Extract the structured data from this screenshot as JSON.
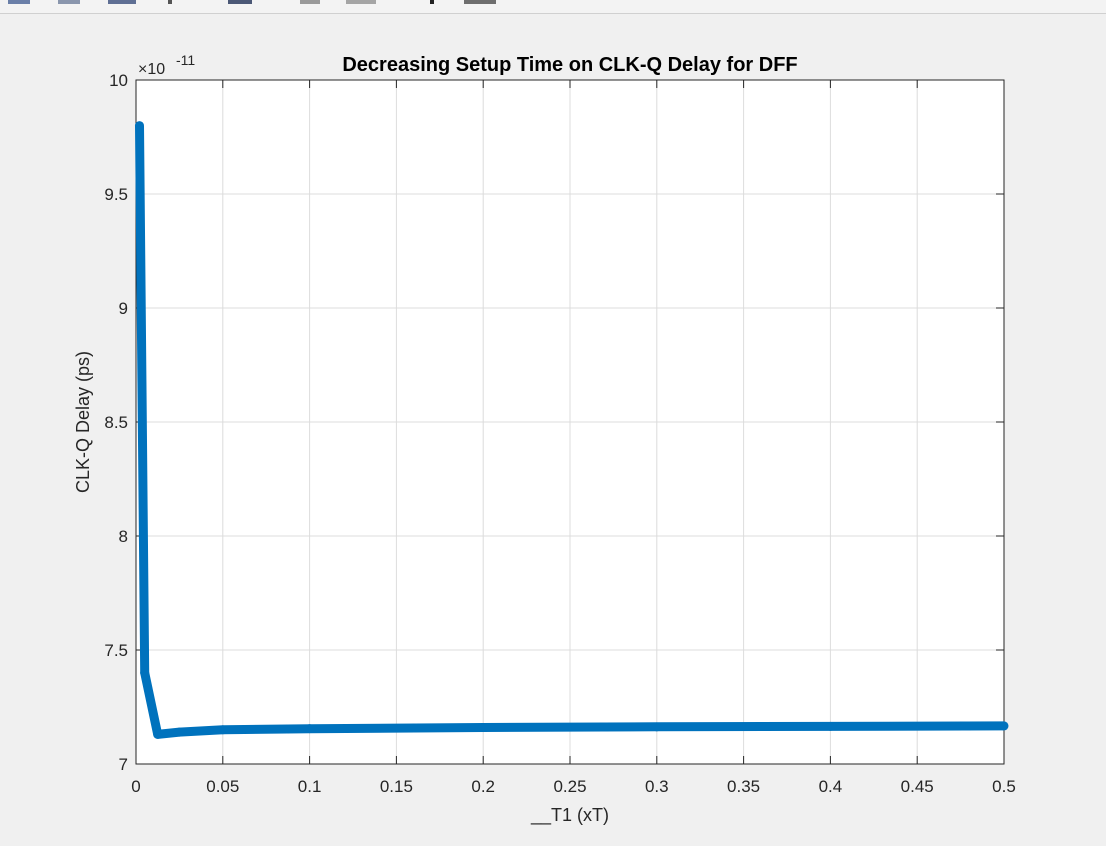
{
  "chart_data": {
    "type": "line",
    "title": "Decreasing Setup Time on CLK-Q Delay for DFF",
    "xlabel": "__T1 (xT)",
    "ylabel": "CLK-Q Delay (ps)",
    "y_exponent_base": "×10",
    "y_exponent_power": "-11",
    "xlim": [
      0,
      0.5
    ],
    "ylim": [
      7e-11,
      1e-10
    ],
    "grid": true,
    "xticks": [
      0,
      0.05,
      0.1,
      0.15,
      0.2,
      0.25,
      0.3,
      0.35,
      0.4,
      0.45,
      0.5
    ],
    "xtick_labels": [
      "0",
      "0.05",
      "0.1",
      "0.15",
      "0.2",
      "0.25",
      "0.3",
      "0.35",
      "0.4",
      "0.45",
      "0.5"
    ],
    "yticks": [
      7e-11,
      7.5e-11,
      8e-11,
      8.5e-11,
      9e-11,
      9.5e-11,
      1e-10
    ],
    "ytick_labels": [
      "7",
      "7.5",
      "8",
      "8.5",
      "9",
      "9.5",
      "10"
    ],
    "series": [
      {
        "color": "#0072bd",
        "x": [
          0.002,
          0.005,
          0.0125,
          0.025,
          0.05,
          0.1,
          0.2,
          0.3,
          0.4,
          0.5
        ],
        "y": [
          9.8e-11,
          7.4e-11,
          7.13e-11,
          7.14e-11,
          7.15e-11,
          7.155e-11,
          7.16e-11,
          7.163e-11,
          7.165e-11,
          7.167e-11
        ]
      }
    ]
  }
}
